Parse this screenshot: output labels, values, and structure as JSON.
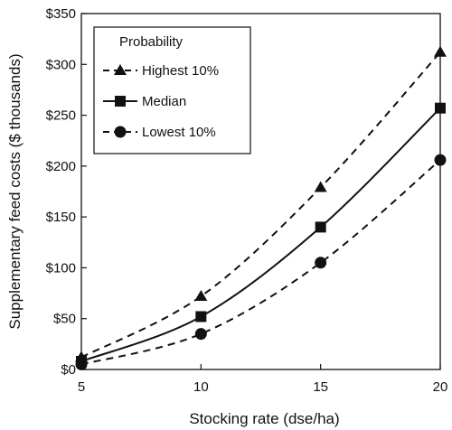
{
  "chart_data": {
    "type": "line",
    "title": "",
    "xlabel": "Stocking rate (dse/ha)",
    "ylabel": "Supplementary feed costs ($ thousands)",
    "xlim": [
      5,
      20
    ],
    "ylim": [
      0,
      350
    ],
    "x_ticks": [
      5,
      10,
      15,
      20
    ],
    "x_tick_labels": [
      "5",
      "10",
      "15",
      "20"
    ],
    "y_ticks": [
      0,
      50,
      100,
      150,
      200,
      250,
      300,
      350
    ],
    "y_tick_labels": [
      "$0",
      "$50",
      "$100",
      "$150",
      "$200",
      "$250",
      "$300",
      "$350"
    ],
    "grid": false,
    "legend": {
      "title": "Probability",
      "placement": "top-left"
    },
    "x": [
      5,
      10,
      15,
      20
    ],
    "series": [
      {
        "name": "Highest 10%",
        "values": [
          12,
          72,
          179,
          312
        ],
        "marker": "triangle",
        "line_style": "dashed",
        "color": "#111111"
      },
      {
        "name": "Median",
        "values": [
          8,
          52,
          140,
          257
        ],
        "marker": "square",
        "line_style": "solid",
        "color": "#111111"
      },
      {
        "name": "Lowest 10%",
        "values": [
          5,
          35,
          105,
          206
        ],
        "marker": "circle",
        "line_style": "dashed",
        "color": "#111111"
      }
    ]
  }
}
